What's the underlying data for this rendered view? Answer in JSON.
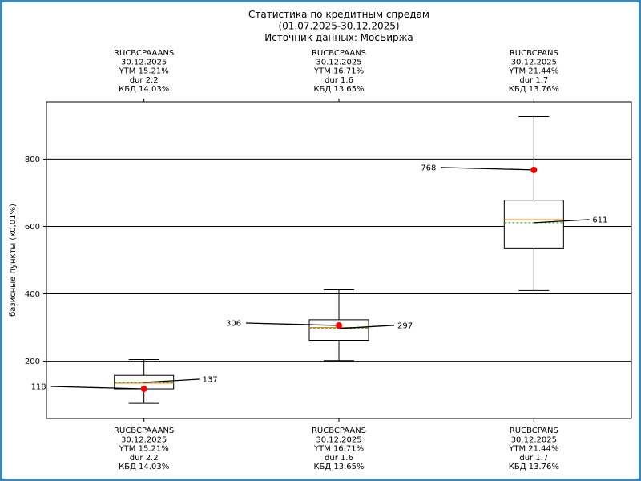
{
  "chart_data": {
    "type": "box",
    "title": [
      "Статистика по кредитным спредам",
      "(01.07.2025-30.12.2025)",
      "Источник данных: МосБиржа"
    ],
    "xlabel": "",
    "ylabel": "базисные пункты (x0,01%)",
    "ylim": [
      30,
      970
    ],
    "yticks": [
      200,
      400,
      600,
      800
    ],
    "grid": "horizontal",
    "colors": {
      "frame": "#3d86b8",
      "median": "#ff7f0e",
      "mean": "#2ca02c",
      "current": "#ff0000"
    },
    "boxes": [
      {
        "name": "RUCBCPAAANS",
        "date": "30.12.2025",
        "ytm": "YTM 15.21%",
        "dur": "dur 2.2",
        "kbd": "КБД 14.03%",
        "whisker_low": 75,
        "q1": 118,
        "median": 135,
        "q3": 158,
        "whisker_high": 205,
        "mean": 137,
        "mean_label": "137",
        "current": 118,
        "current_label": "118"
      },
      {
        "name": "RUCBCPAANS",
        "date": "30.12.2025",
        "ytm": "YTM 16.71%",
        "dur": "dur 1.6",
        "kbd": "КБД 13.65%",
        "whisker_low": 202,
        "q1": 262,
        "median": 300,
        "q3": 323,
        "whisker_high": 412,
        "mean": 297,
        "mean_label": "297",
        "current": 306,
        "current_label": "306"
      },
      {
        "name": "RUCBCPANS",
        "date": "30.12.2025",
        "ytm": "YTM 21.44%",
        "dur": "dur 1.7",
        "kbd": "КБД 13.76%",
        "whisker_low": 410,
        "q1": 536,
        "median": 620,
        "q3": 678,
        "whisker_high": 926,
        "mean": 611,
        "mean_label": "611",
        "current": 768,
        "current_label": "768"
      }
    ]
  }
}
